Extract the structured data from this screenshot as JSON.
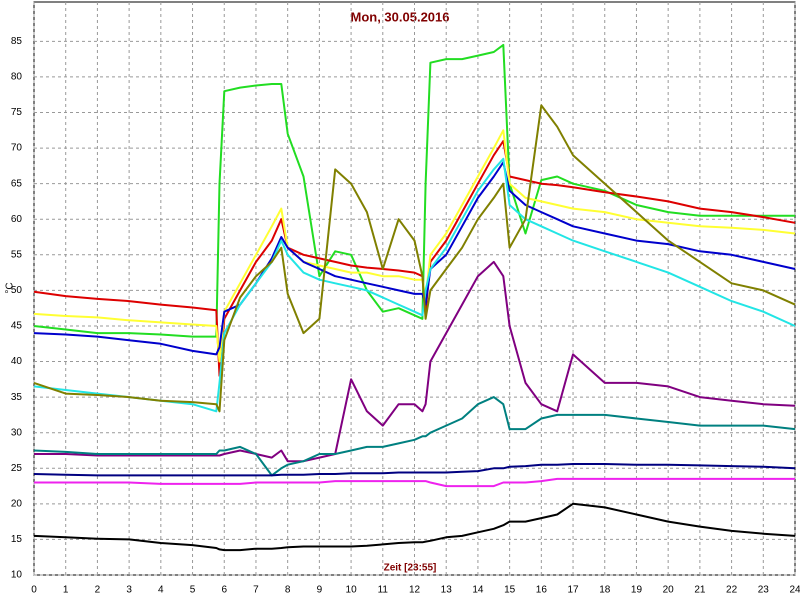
{
  "chart_data": {
    "type": "line",
    "title": "Mon, 30.05.2016",
    "xlabel": "Zeit [23:55]",
    "ylabel": "°C",
    "x": [
      0,
      1,
      2,
      3,
      4,
      5,
      5.75,
      5.85,
      6,
      6.5,
      7,
      7.5,
      7.8,
      8,
      8.5,
      9,
      9.5,
      10,
      10.5,
      11,
      11.5,
      12,
      12.25,
      12.35,
      12.5,
      13,
      13.5,
      14,
      14.5,
      14.8,
      15,
      15.5,
      16,
      16.5,
      17,
      18,
      19,
      20,
      21,
      22,
      23,
      24
    ],
    "xlim": [
      0,
      24
    ],
    "xticks": [
      0,
      1,
      2,
      3,
      4,
      5,
      6,
      7,
      8,
      9,
      10,
      11,
      12,
      13,
      14,
      15,
      16,
      17,
      18,
      19,
      20,
      21,
      22,
      23,
      24
    ],
    "ylim": [
      10,
      88
    ],
    "yticks": [
      10,
      15,
      20,
      25,
      30,
      35,
      40,
      45,
      50,
      55,
      60,
      65,
      70,
      75,
      80,
      85
    ],
    "grid": true,
    "series": [
      {
        "color": "#22dd22",
        "values": [
          45,
          44.5,
          44,
          44,
          43.8,
          43.5,
          43.5,
          65,
          78,
          78.5,
          78.8,
          79,
          79,
          72,
          66,
          52,
          55.5,
          55,
          50,
          47,
          47.5,
          46.5,
          46,
          65,
          82,
          82.5,
          82.5,
          83,
          83.5,
          84.5,
          65,
          58,
          65.5,
          66,
          65,
          64,
          62,
          61,
          60.5,
          60.5,
          60.5,
          60.5
        ]
      },
      {
        "color": "#dd0000",
        "values": [
          49.8,
          49.2,
          48.8,
          48.5,
          48,
          47.6,
          47.2,
          38,
          46,
          50,
          54,
          57,
          60,
          56,
          55,
          54.5,
          54,
          53.5,
          53.2,
          53,
          52.8,
          52.5,
          52,
          47,
          54,
          57,
          61,
          65,
          69,
          71,
          66,
          65.5,
          65,
          64.8,
          64.5,
          63.8,
          63.2,
          62.5,
          61.5,
          61,
          60.3,
          59.5
        ]
      },
      {
        "color": "#ffff33",
        "values": [
          46.7,
          46.4,
          46.2,
          45.8,
          45.5,
          45.2,
          45,
          40,
          47,
          51,
          55,
          59,
          61.5,
          56,
          54,
          53.5,
          53,
          52.5,
          52.5,
          52,
          52,
          51.5,
          51.5,
          49,
          55,
          58,
          62,
          66,
          70,
          72.5,
          65,
          63,
          62.5,
          62,
          61.5,
          61,
          60,
          59.5,
          59,
          58.8,
          58.5,
          58
        ]
      },
      {
        "color": "#0000cc",
        "values": [
          44,
          43.8,
          43.5,
          43,
          42.5,
          41.5,
          41,
          42,
          47,
          48,
          51,
          54.5,
          57.5,
          56,
          54,
          53,
          52,
          51.5,
          51,
          50.5,
          50,
          49.5,
          49.5,
          48,
          53,
          55,
          59,
          63,
          66,
          68,
          64,
          62,
          61,
          60,
          59,
          58,
          57,
          56.5,
          55.5,
          55,
          54,
          53
        ]
      },
      {
        "color": "#22e5e5",
        "values": [
          36.5,
          36,
          35.5,
          35,
          34.5,
          34,
          33,
          37,
          44,
          48,
          51,
          54,
          57,
          55,
          52.5,
          51.5,
          51,
          50.5,
          50,
          49,
          48,
          47,
          46.5,
          50,
          53,
          56,
          60,
          64,
          67,
          68.5,
          62,
          60,
          59,
          58,
          57,
          55.5,
          54,
          52.5,
          50.5,
          48.5,
          47,
          45
        ]
      },
      {
        "color": "#808000",
        "values": [
          37,
          35.5,
          35.3,
          35,
          34.5,
          34.3,
          34,
          33,
          43,
          49,
          52,
          54,
          56,
          49.5,
          44,
          46,
          67,
          65,
          61,
          53,
          60,
          57,
          52,
          46,
          50,
          53,
          56,
          60,
          63,
          65,
          56,
          60,
          76,
          73,
          69,
          65,
          61,
          57,
          54,
          51,
          50,
          48
        ]
      },
      {
        "color": "#800080",
        "values": [
          27,
          27,
          26.8,
          26.8,
          26.8,
          26.8,
          26.8,
          26.8,
          27,
          27.5,
          27,
          26.5,
          27.5,
          26,
          26,
          26.5,
          27,
          37.5,
          33,
          31,
          34,
          34,
          33,
          34,
          40,
          44,
          48,
          52,
          54,
          52,
          45,
          37,
          34,
          33,
          41,
          37,
          37,
          36.5,
          35,
          34.5,
          34,
          33.8
        ]
      },
      {
        "color": "#008080",
        "values": [
          27.5,
          27.3,
          27,
          27,
          27,
          27,
          27,
          27.5,
          27.5,
          28,
          27,
          24,
          25,
          25.5,
          26,
          27,
          27,
          27.5,
          28,
          28,
          28.5,
          29,
          29.5,
          29.5,
          30,
          31,
          32,
          34,
          35,
          34,
          30.5,
          30.5,
          32,
          32.5,
          32.5,
          32.5,
          32,
          31.5,
          31,
          31,
          31,
          30.5
        ]
      },
      {
        "color": "#000080",
        "values": [
          24.2,
          24.1,
          24,
          24,
          24,
          24,
          24,
          24,
          24,
          24,
          24,
          24,
          24.1,
          24.1,
          24.1,
          24.2,
          24.2,
          24.3,
          24.3,
          24.3,
          24.4,
          24.4,
          24.4,
          24.4,
          24.4,
          24.4,
          24.5,
          24.6,
          25,
          25,
          25.2,
          25.3,
          25.5,
          25.5,
          25.6,
          25.6,
          25.5,
          25.5,
          25.4,
          25.3,
          25.2,
          25
        ]
      },
      {
        "color": "#ee22ee",
        "values": [
          23,
          23,
          23,
          23,
          22.8,
          22.8,
          22.8,
          22.8,
          22.8,
          22.8,
          23,
          23,
          23,
          23,
          23,
          23,
          23.2,
          23.2,
          23.2,
          23.2,
          23.2,
          23.2,
          23.2,
          23.2,
          23,
          22.5,
          22.5,
          22.5,
          22.5,
          23,
          23,
          23,
          23.2,
          23.5,
          23.5,
          23.5,
          23.5,
          23.5,
          23.5,
          23.5,
          23.5,
          23.5
        ]
      },
      {
        "color": "#000000",
        "values": [
          15.5,
          15.3,
          15.1,
          15,
          14.5,
          14.2,
          13.8,
          13.6,
          13.5,
          13.5,
          13.7,
          13.7,
          13.8,
          13.9,
          14,
          14,
          14,
          14,
          14.1,
          14.3,
          14.5,
          14.6,
          14.6,
          14.7,
          14.8,
          15.3,
          15.5,
          16,
          16.5,
          17,
          17.5,
          17.5,
          18,
          18.5,
          20,
          19.5,
          18.5,
          17.5,
          16.8,
          16.2,
          15.8,
          15.5
        ]
      }
    ]
  }
}
